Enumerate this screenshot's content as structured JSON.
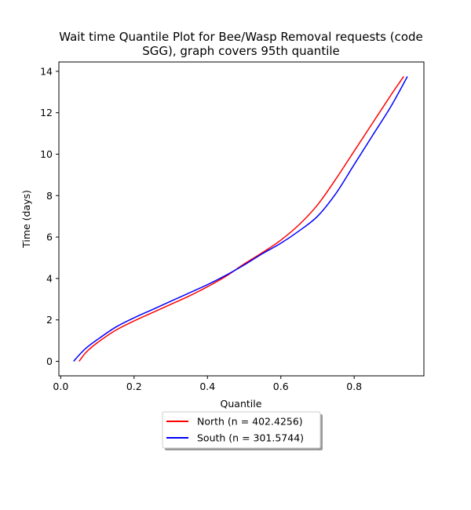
{
  "chart_data": {
    "type": "line",
    "title_lines": [
      "Wait time Quantile Plot for Bee/Wasp Removal  requests (code",
      "SGG), graph covers 95th quantile"
    ],
    "xlabel": "Quantile",
    "ylabel": "Time (days)",
    "xlim": [
      -0.005,
      0.99
    ],
    "ylim": [
      -0.7,
      14.45
    ],
    "xticks": [
      0.0,
      0.2,
      0.4,
      0.6,
      0.8
    ],
    "xtick_labels": [
      "0.0",
      "0.2",
      "0.4",
      "0.6",
      "0.8"
    ],
    "yticks": [
      0,
      2,
      4,
      6,
      8,
      10,
      12,
      14
    ],
    "ytick_labels": [
      "0",
      "2",
      "4",
      "6",
      "8",
      "10",
      "12",
      "14"
    ],
    "grid": false,
    "legend_placement": "below plot, centered",
    "series": [
      {
        "name": "North (n = 402.4256)",
        "color": "#ff0000",
        "x": [
          0.05,
          0.07,
          0.1,
          0.15,
          0.2,
          0.25,
          0.3,
          0.35,
          0.4,
          0.45,
          0.5,
          0.55,
          0.6,
          0.65,
          0.7,
          0.75,
          0.8,
          0.85,
          0.9,
          0.935
        ],
        "y": [
          0.0,
          0.45,
          0.9,
          1.5,
          1.95,
          2.35,
          2.75,
          3.15,
          3.6,
          4.1,
          4.7,
          5.25,
          5.85,
          6.6,
          7.55,
          8.8,
          10.15,
          11.5,
          12.85,
          13.75
        ]
      },
      {
        "name": "South (n = 301.5744)",
        "color": "#0000ff",
        "x": [
          0.035,
          0.05,
          0.07,
          0.1,
          0.15,
          0.2,
          0.25,
          0.3,
          0.35,
          0.4,
          0.45,
          0.5,
          0.55,
          0.6,
          0.65,
          0.7,
          0.75,
          0.8,
          0.85,
          0.9,
          0.945
        ],
        "y": [
          0.0,
          0.3,
          0.65,
          1.05,
          1.65,
          2.1,
          2.5,
          2.9,
          3.3,
          3.7,
          4.15,
          4.65,
          5.2,
          5.7,
          6.3,
          7.0,
          8.1,
          9.5,
          10.9,
          12.3,
          13.75
        ]
      }
    ]
  }
}
